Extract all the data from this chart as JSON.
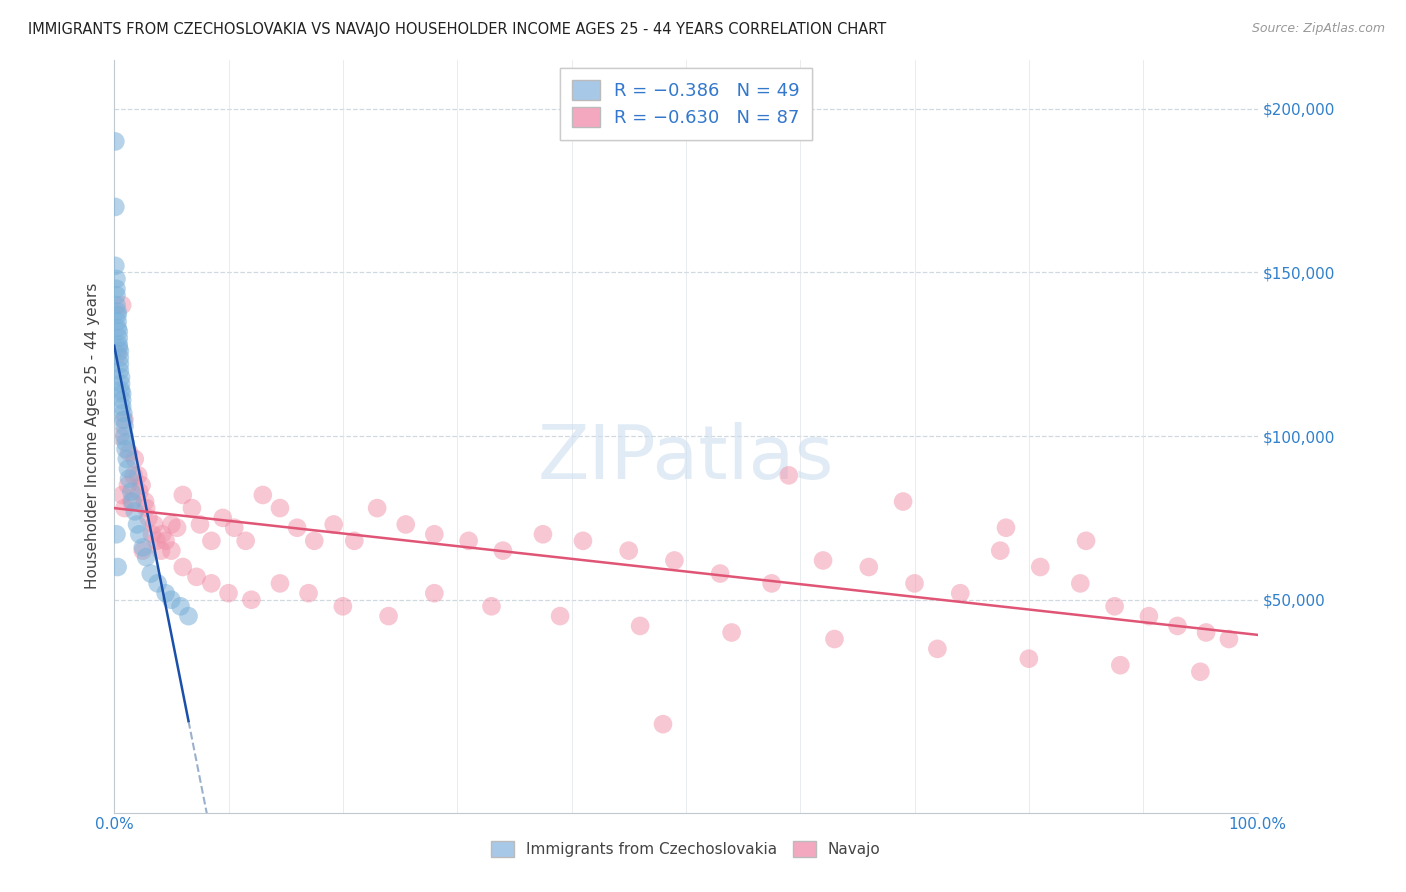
{
  "title": "IMMIGRANTS FROM CZECHOSLOVAKIA VS NAVAJO HOUSEHOLDER INCOME AGES 25 - 44 YEARS CORRELATION CHART",
  "source": "Source: ZipAtlas.com",
  "ylabel": "Householder Income Ages 25 - 44 years",
  "x_min": 0.0,
  "x_max": 1.0,
  "y_min": -15000,
  "y_max": 215000,
  "watermark_text": "ZIPatlas",
  "blue_line_color": "#1a4faa",
  "pink_line_color": "#e05575",
  "dashed_line_color": "#9ab0cc",
  "blue_dot_color": "#7ab0d8",
  "pink_dot_color": "#f090a8",
  "blue_dot_alpha": 0.55,
  "pink_dot_alpha": 0.5,
  "dot_size": 180,
  "grid_color": "#d0d8e0",
  "title_color": "#222222",
  "source_color": "#999999",
  "ylabel_color": "#444444",
  "tick_label_color": "#3080cc",
  "blue_x": [
    0.001,
    0.001,
    0.001,
    0.002,
    0.002,
    0.002,
    0.002,
    0.003,
    0.003,
    0.003,
    0.003,
    0.004,
    0.004,
    0.004,
    0.004,
    0.005,
    0.005,
    0.005,
    0.005,
    0.006,
    0.006,
    0.006,
    0.007,
    0.007,
    0.007,
    0.008,
    0.008,
    0.009,
    0.009,
    0.01,
    0.01,
    0.011,
    0.012,
    0.013,
    0.015,
    0.016,
    0.018,
    0.02,
    0.022,
    0.025,
    0.028,
    0.032,
    0.038,
    0.045,
    0.05,
    0.058,
    0.065,
    0.002,
    0.003
  ],
  "blue_y": [
    190000,
    170000,
    152000,
    148000,
    145000,
    143000,
    140000,
    138000,
    137000,
    135000,
    133000,
    132000,
    130000,
    128000,
    127000,
    126000,
    124000,
    122000,
    120000,
    118000,
    116000,
    114000,
    113000,
    111000,
    109000,
    107000,
    105000,
    103000,
    100000,
    98000,
    96000,
    93000,
    90000,
    87000,
    83000,
    80000,
    77000,
    73000,
    70000,
    66000,
    63000,
    58000,
    55000,
    52000,
    50000,
    48000,
    45000,
    70000,
    60000
  ],
  "pink_x": [
    0.003,
    0.005,
    0.007,
    0.009,
    0.012,
    0.015,
    0.018,
    0.021,
    0.024,
    0.027,
    0.03,
    0.033,
    0.037,
    0.041,
    0.045,
    0.05,
    0.055,
    0.06,
    0.068,
    0.075,
    0.085,
    0.095,
    0.105,
    0.115,
    0.13,
    0.145,
    0.16,
    0.175,
    0.192,
    0.21,
    0.23,
    0.255,
    0.28,
    0.31,
    0.34,
    0.375,
    0.41,
    0.45,
    0.49,
    0.53,
    0.575,
    0.62,
    0.66,
    0.7,
    0.74,
    0.775,
    0.81,
    0.845,
    0.875,
    0.905,
    0.93,
    0.955,
    0.975,
    0.009,
    0.013,
    0.017,
    0.022,
    0.028,
    0.035,
    0.042,
    0.05,
    0.06,
    0.072,
    0.085,
    0.1,
    0.12,
    0.145,
    0.17,
    0.2,
    0.24,
    0.28,
    0.33,
    0.39,
    0.46,
    0.54,
    0.63,
    0.72,
    0.8,
    0.88,
    0.95,
    0.59,
    0.69,
    0.78,
    0.85,
    0.007,
    0.025,
    0.48
  ],
  "pink_y": [
    125000,
    100000,
    82000,
    78000,
    85000,
    80000,
    93000,
    88000,
    85000,
    80000,
    75000,
    70000,
    68000,
    65000,
    68000,
    73000,
    72000,
    82000,
    78000,
    73000,
    68000,
    75000,
    72000,
    68000,
    82000,
    78000,
    72000,
    68000,
    73000,
    68000,
    78000,
    73000,
    70000,
    68000,
    65000,
    70000,
    68000,
    65000,
    62000,
    58000,
    55000,
    62000,
    60000,
    55000,
    52000,
    65000,
    60000,
    55000,
    48000,
    45000,
    42000,
    40000,
    38000,
    105000,
    95000,
    88000,
    83000,
    78000,
    73000,
    70000,
    65000,
    60000,
    57000,
    55000,
    52000,
    50000,
    55000,
    52000,
    48000,
    45000,
    52000,
    48000,
    45000,
    42000,
    40000,
    38000,
    35000,
    32000,
    30000,
    28000,
    88000,
    80000,
    72000,
    68000,
    140000,
    65000,
    12000
  ]
}
